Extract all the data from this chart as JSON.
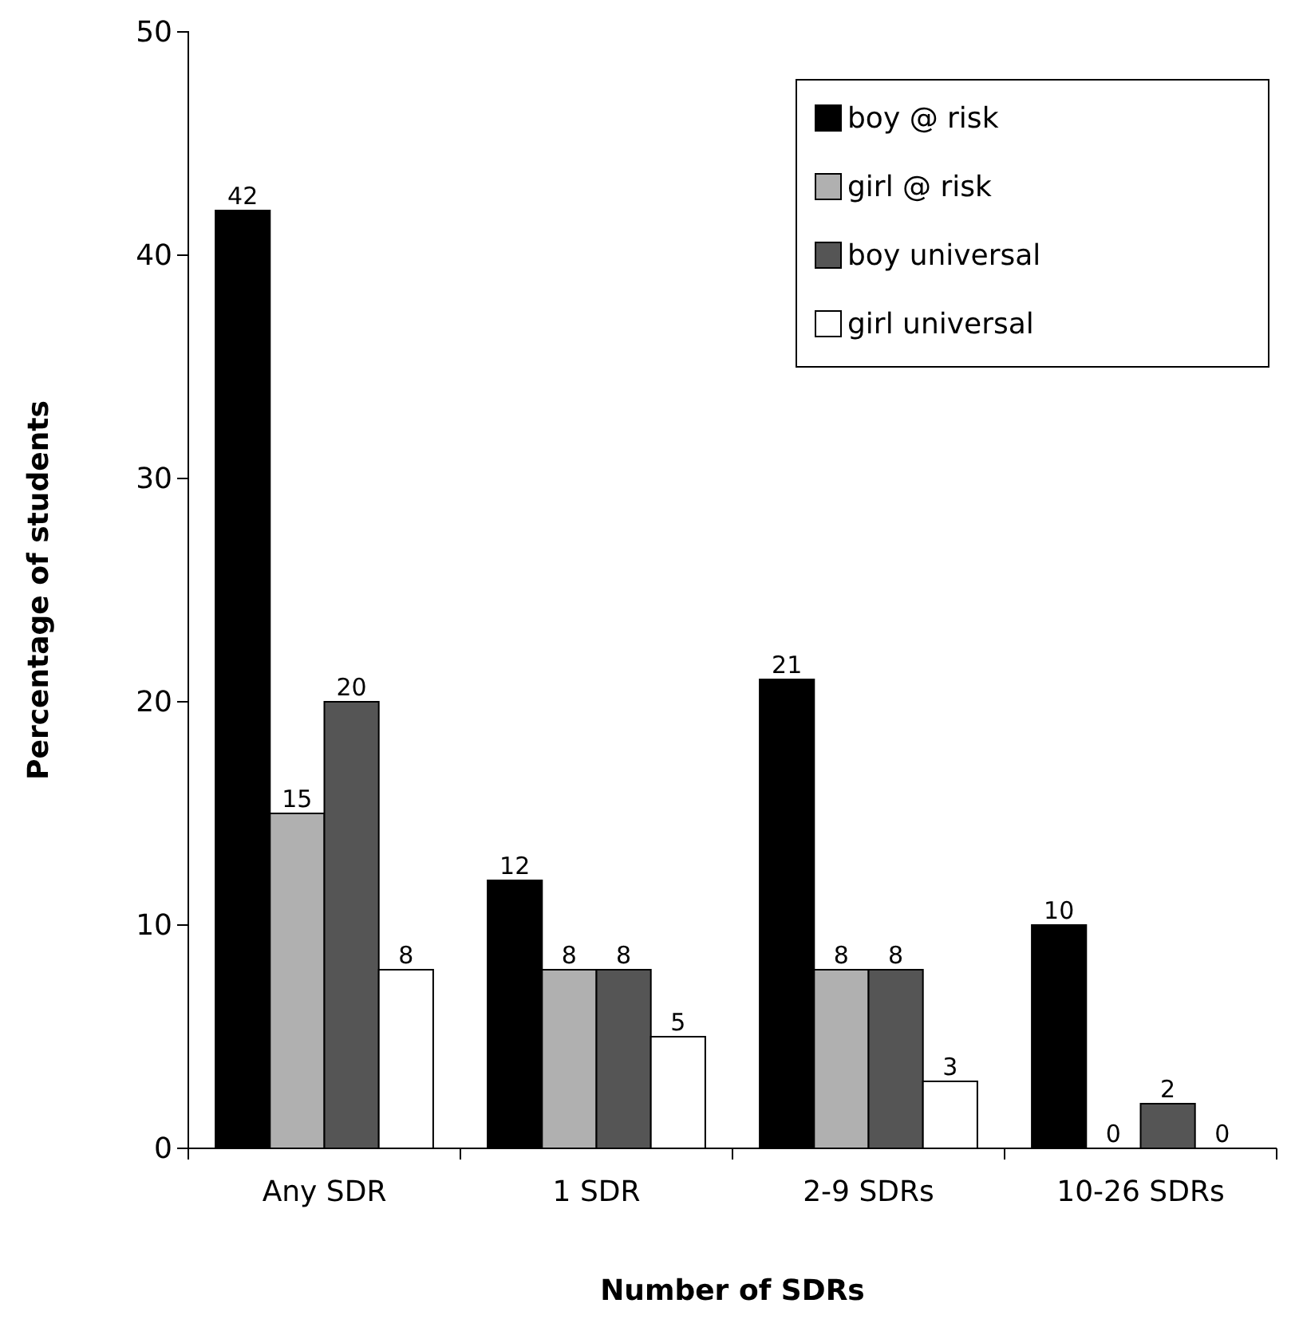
{
  "chart_data": {
    "type": "bar",
    "xlabel": "Number of SDRs",
    "ylabel": "Percentage of students",
    "categories": [
      "Any SDR",
      "1 SDR",
      "2-9 SDRs",
      "10-26 SDRs"
    ],
    "series": [
      {
        "name": "boy @ risk",
        "color": "#000000",
        "values": [
          42,
          12,
          21,
          10
        ]
      },
      {
        "name": "girl @ risk",
        "color": "#b0b0b0",
        "values": [
          15,
          8,
          8,
          0
        ]
      },
      {
        "name": "boy universal",
        "color": "#555555",
        "values": [
          20,
          8,
          8,
          2
        ]
      },
      {
        "name": "girl universal",
        "color": "#ffffff",
        "values": [
          8,
          5,
          3,
          0
        ]
      }
    ],
    "ylim": [
      0,
      50
    ],
    "yticks": [
      0,
      10,
      20,
      30,
      40,
      50
    ],
    "grid": false,
    "legend": "top right",
    "data_labels": true
  }
}
